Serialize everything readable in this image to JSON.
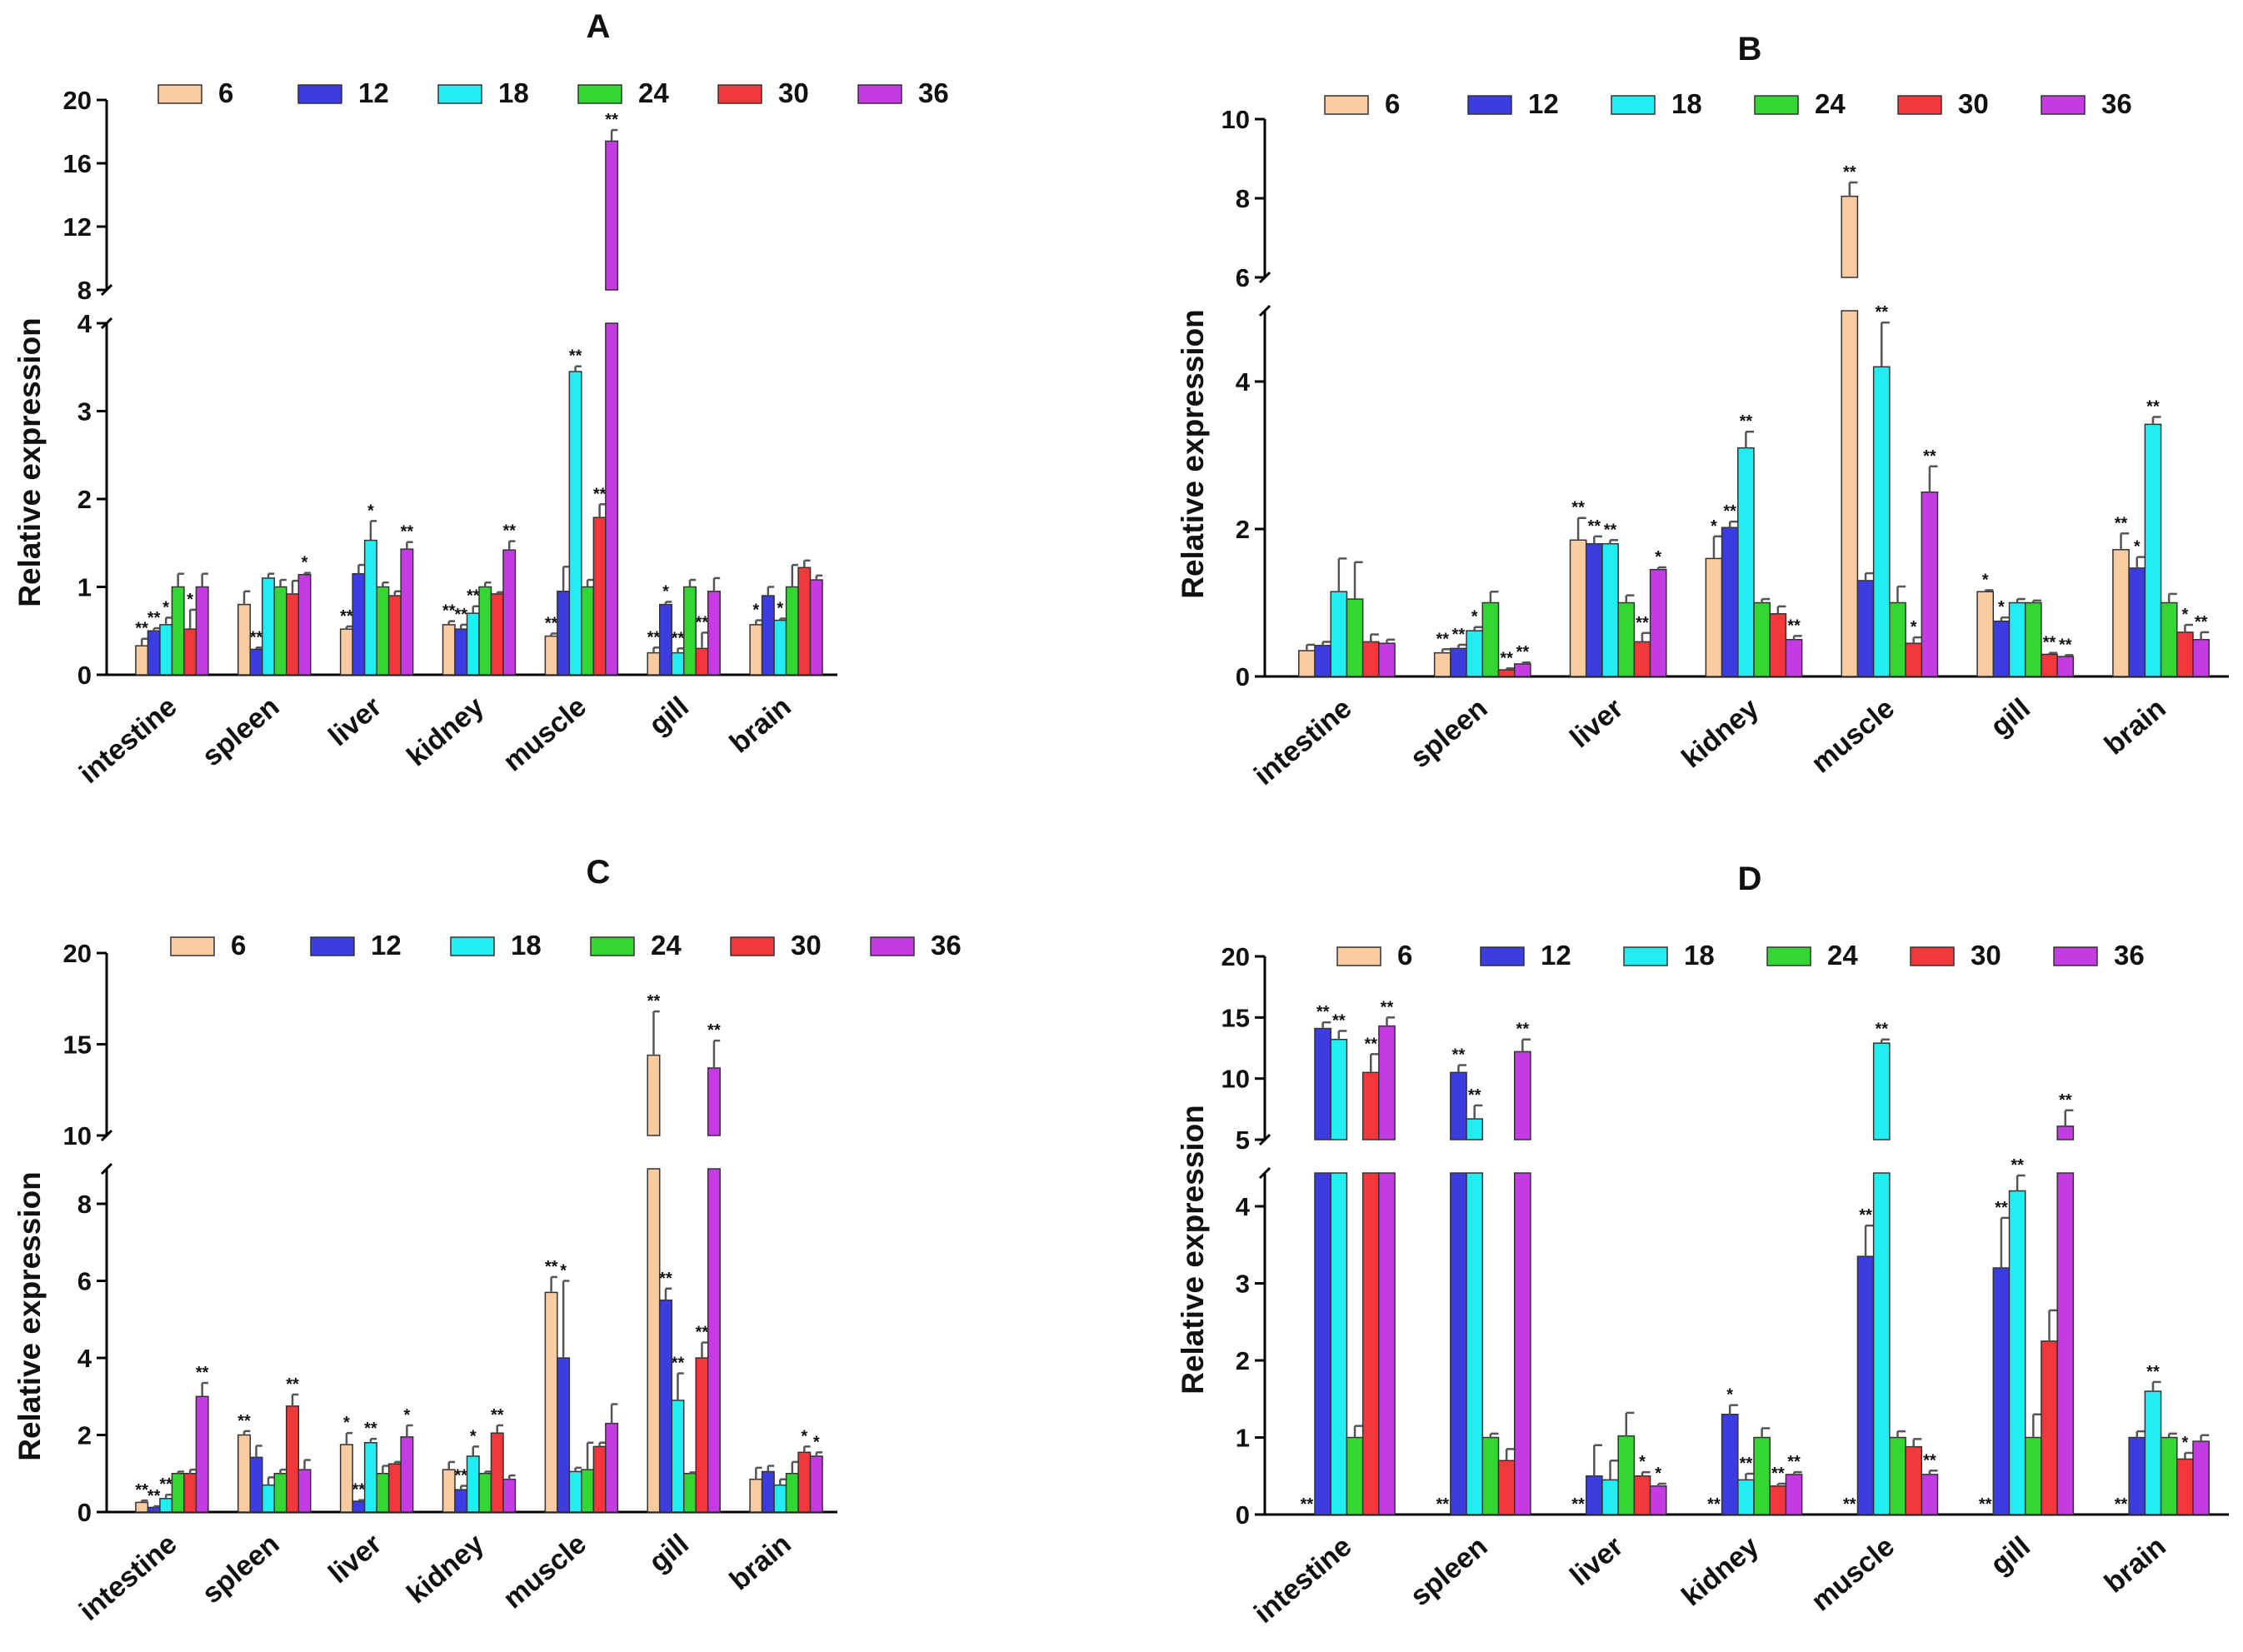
{
  "figure": {
    "series_names": [
      "6",
      "12",
      "18",
      "24",
      "30",
      "36"
    ],
    "series_colors": [
      "#F9CBA0",
      "#3B3DE1",
      "#22EEF2",
      "#33D633",
      "#F2383A",
      "#C43BE3"
    ],
    "ylabel": "Relative expression",
    "categories": [
      "intestine",
      "spleen",
      "liver",
      "kidney",
      "muscle",
      "gill",
      "brain"
    ]
  },
  "chart_data": [
    {
      "type": "bar",
      "title": "A",
      "ylabel": "Relative expression",
      "categories": [
        "intestine",
        "spleen",
        "liver",
        "kidney",
        "muscle",
        "gill",
        "brain"
      ],
      "y_axis_break": {
        "lower_range": [
          0,
          4
        ],
        "upper_range": [
          8,
          20
        ]
      },
      "yticks_lower": [
        "0",
        "1",
        "2",
        "3",
        "4"
      ],
      "yticks_upper": [
        "8",
        "12",
        "16",
        "20"
      ],
      "series": [
        {
          "name": "6",
          "values": [
            0.33,
            0.8,
            0.52,
            0.57,
            0.44,
            0.25,
            0.57
          ],
          "errors": [
            0.08,
            0.15,
            0.03,
            0.04,
            0.03,
            0.06,
            0.05
          ],
          "sig": [
            "**",
            "",
            "**",
            "**",
            "**",
            "**",
            "*"
          ]
        },
        {
          "name": "12",
          "values": [
            0.5,
            0.29,
            1.15,
            0.52,
            0.95,
            0.8,
            0.9
          ],
          "errors": [
            0.03,
            0.02,
            0.1,
            0.05,
            0.28,
            0.03,
            0.1
          ],
          "sig": [
            "**",
            "**",
            "",
            "**",
            "",
            "*",
            ""
          ]
        },
        {
          "name": "18",
          "values": [
            0.57,
            1.1,
            1.53,
            0.7,
            3.45,
            0.25,
            0.62
          ],
          "errors": [
            0.08,
            0.05,
            0.22,
            0.08,
            0.06,
            0.05,
            0.02
          ],
          "sig": [
            "*",
            "",
            "*",
            "**",
            "**",
            "**",
            "*"
          ]
        },
        {
          "name": "24",
          "values": [
            1.0,
            1.0,
            1.0,
            1.0,
            1.0,
            1.0,
            1.0
          ],
          "errors": [
            0.15,
            0.08,
            0.05,
            0.05,
            0.08,
            0.08,
            0.25
          ],
          "sig": [
            "",
            "",
            "",
            "",
            "",
            "",
            ""
          ]
        },
        {
          "name": "30",
          "values": [
            0.52,
            0.92,
            0.9,
            0.92,
            1.79,
            0.3,
            1.22
          ],
          "errors": [
            0.22,
            0.15,
            0.05,
            0.02,
            0.15,
            0.18,
            0.08
          ],
          "sig": [
            "*",
            "",
            "",
            "",
            "**",
            "**",
            ""
          ]
        },
        {
          "name": "36",
          "values": [
            1.0,
            1.14,
            1.43,
            1.42,
            17.4,
            0.95,
            1.08
          ],
          "errors": [
            0.15,
            0.02,
            0.08,
            0.1,
            0.7,
            0.15,
            0.05
          ],
          "sig": [
            "",
            "*",
            "**",
            "**",
            "**",
            "",
            ""
          ]
        }
      ]
    },
    {
      "type": "bar",
      "title": "B",
      "ylabel": "Relative expression",
      "categories": [
        "intestine",
        "spleen",
        "liver",
        "kidney",
        "muscle",
        "gill",
        "brain"
      ],
      "y_axis_break": {
        "lower_range": [
          0,
          5
        ],
        "upper_range": [
          6,
          10
        ]
      },
      "yticks_lower": [
        "0",
        "2",
        "4"
      ],
      "yticks_upper": [
        "6",
        "8",
        "10"
      ],
      "series": [
        {
          "name": "6",
          "values": [
            0.35,
            0.32,
            1.85,
            1.6,
            8.05,
            1.15,
            1.72
          ],
          "errors": [
            0.08,
            0.05,
            0.3,
            0.3,
            0.35,
            0.02,
            0.22
          ],
          "sig": [
            "",
            "**",
            "**",
            "*",
            "**",
            "*",
            "**"
          ]
        },
        {
          "name": "12",
          "values": [
            0.42,
            0.38,
            1.8,
            2.02,
            1.3,
            0.75,
            1.47
          ],
          "errors": [
            0.05,
            0.05,
            0.1,
            0.08,
            0.1,
            0.05,
            0.15
          ],
          "sig": [
            "",
            "**",
            "**",
            "**",
            "",
            "*",
            "*"
          ]
        },
        {
          "name": "18",
          "values": [
            1.15,
            0.62,
            1.8,
            3.1,
            4.2,
            1.0,
            3.42
          ],
          "errors": [
            0.45,
            0.05,
            0.05,
            0.22,
            0.6,
            0.05,
            0.1
          ],
          "sig": [
            "",
            "*",
            "**",
            "**",
            "**",
            "",
            "**"
          ]
        },
        {
          "name": "24",
          "values": [
            1.05,
            1.0,
            1.0,
            1.0,
            1.0,
            1.0,
            1.0
          ],
          "errors": [
            0.5,
            0.15,
            0.1,
            0.05,
            0.22,
            0.03,
            0.12
          ],
          "sig": [
            "",
            "",
            "",
            "",
            "",
            "",
            ""
          ]
        },
        {
          "name": "30",
          "values": [
            0.47,
            0.09,
            0.47,
            0.85,
            0.45,
            0.3,
            0.6
          ],
          "errors": [
            0.1,
            0.02,
            0.12,
            0.1,
            0.08,
            0.02,
            0.1
          ],
          "sig": [
            "",
            "**",
            "**",
            "",
            "*",
            "**",
            "*"
          ]
        },
        {
          "name": "36",
          "values": [
            0.45,
            0.17,
            1.45,
            0.5,
            2.5,
            0.27,
            0.5
          ],
          "errors": [
            0.05,
            0.02,
            0.03,
            0.05,
            0.35,
            0.02,
            0.1
          ],
          "sig": [
            "",
            "**",
            "*",
            "**",
            "**",
            "**",
            "**"
          ]
        }
      ]
    },
    {
      "type": "bar",
      "title": "C",
      "ylabel": "Relative expression",
      "categories": [
        "intestine",
        "spleen",
        "liver",
        "kidney",
        "muscle",
        "gill",
        "brain"
      ],
      "y_axis_break": {
        "lower_range": [
          0,
          9
        ],
        "upper_range": [
          10,
          20
        ]
      },
      "yticks_lower": [
        "0",
        "2",
        "4",
        "6",
        "8"
      ],
      "yticks_upper": [
        "10",
        "15",
        "20"
      ],
      "series": [
        {
          "name": "6",
          "values": [
            0.25,
            2.0,
            1.75,
            1.1,
            5.7,
            14.4,
            0.85
          ],
          "errors": [
            0.05,
            0.1,
            0.3,
            0.2,
            0.4,
            2.4,
            0.3
          ],
          "sig": [
            "**",
            "**",
            "*",
            "",
            "**",
            "**",
            ""
          ]
        },
        {
          "name": "12",
          "values": [
            0.12,
            1.42,
            0.28,
            0.58,
            4.0,
            5.5,
            1.05
          ],
          "errors": [
            0.03,
            0.3,
            0.03,
            0.1,
            2.0,
            0.3,
            0.15
          ],
          "sig": [
            "**",
            "",
            "**",
            "**",
            "*",
            "**",
            ""
          ]
        },
        {
          "name": "18",
          "values": [
            0.35,
            0.7,
            1.8,
            1.45,
            1.05,
            2.9,
            0.7
          ],
          "errors": [
            0.1,
            0.2,
            0.1,
            0.25,
            0.1,
            0.7,
            0.15
          ],
          "sig": [
            "**",
            "",
            "**",
            "*",
            "",
            "**",
            ""
          ]
        },
        {
          "name": "24",
          "values": [
            1.0,
            1.0,
            1.0,
            1.0,
            1.1,
            1.0,
            1.0
          ],
          "errors": [
            0.05,
            0.1,
            0.2,
            0.05,
            0.7,
            0.03,
            0.3
          ],
          "sig": [
            "",
            "",
            "",
            "",
            "",
            "",
            ""
          ]
        },
        {
          "name": "30",
          "values": [
            1.0,
            2.75,
            1.25,
            2.05,
            1.7,
            4.0,
            1.55
          ],
          "errors": [
            0.1,
            0.3,
            0.05,
            0.2,
            0.1,
            0.4,
            0.15
          ],
          "sig": [
            "",
            "**",
            "",
            "**",
            "",
            "**",
            "*"
          ]
        },
        {
          "name": "36",
          "values": [
            3.0,
            1.1,
            1.95,
            0.85,
            2.3,
            13.7,
            1.45
          ],
          "errors": [
            0.35,
            0.25,
            0.3,
            0.1,
            0.5,
            1.5,
            0.1
          ],
          "sig": [
            "**",
            "",
            "*",
            "",
            "",
            "**",
            "*"
          ]
        }
      ]
    },
    {
      "type": "bar",
      "title": "D",
      "ylabel": "Relative expression",
      "categories": [
        "intestine",
        "spleen",
        "liver",
        "kidney",
        "muscle",
        "gill",
        "brain"
      ],
      "y_axis_break": {
        "lower_range": [
          0,
          4.5
        ],
        "upper_range": [
          5,
          20
        ]
      },
      "yticks_lower": [
        "0",
        "1",
        "2",
        "3",
        "4"
      ],
      "yticks_upper": [
        "5",
        "10",
        "15",
        "20"
      ],
      "series": [
        {
          "name": "6",
          "values": [
            0.0,
            0.0,
            0.0,
            0.0,
            0.0,
            0.0,
            0.0
          ],
          "errors": [
            0,
            0,
            0,
            0,
            0,
            0,
            0
          ],
          "sig": [
            "**",
            "**",
            "**",
            "**",
            "**",
            "**",
            "**"
          ]
        },
        {
          "name": "12",
          "values": [
            14.1,
            10.5,
            0.5,
            1.3,
            3.35,
            3.2,
            1.0
          ],
          "errors": [
            0.5,
            0.6,
            0.4,
            0.12,
            0.4,
            0.65,
            0.08
          ],
          "sig": [
            "**",
            "**",
            "",
            "*",
            "**",
            "**",
            ""
          ]
        },
        {
          "name": "18",
          "values": [
            13.2,
            6.7,
            0.45,
            0.45,
            12.9,
            4.2,
            1.6
          ],
          "errors": [
            0.7,
            1.1,
            0.25,
            0.08,
            0.3,
            0.2,
            0.12
          ],
          "sig": [
            "**",
            "**",
            "",
            "**",
            "**",
            "**",
            "**"
          ]
        },
        {
          "name": "24",
          "values": [
            1.0,
            1.0,
            1.02,
            1.0,
            1.0,
            1.0,
            1.0
          ],
          "errors": [
            0.15,
            0.05,
            0.3,
            0.12,
            0.08,
            0.3,
            0.05
          ],
          "sig": [
            "",
            "",
            "",
            "",
            "",
            "",
            ""
          ]
        },
        {
          "name": "30",
          "values": [
            10.5,
            0.7,
            0.5,
            0.37,
            0.88,
            2.25,
            0.72
          ],
          "errors": [
            1.5,
            0.15,
            0.05,
            0.03,
            0.1,
            0.4,
            0.08
          ],
          "sig": [
            "**",
            "",
            "*",
            "**",
            "",
            "",
            "*"
          ]
        },
        {
          "name": "36",
          "values": [
            14.3,
            12.2,
            0.37,
            0.52,
            0.52,
            6.1,
            0.95
          ],
          "errors": [
            0.7,
            1.0,
            0.03,
            0.03,
            0.05,
            1.3,
            0.08
          ],
          "sig": [
            "**",
            "**",
            "*",
            "**",
            "**",
            "**",
            ""
          ]
        }
      ]
    }
  ]
}
